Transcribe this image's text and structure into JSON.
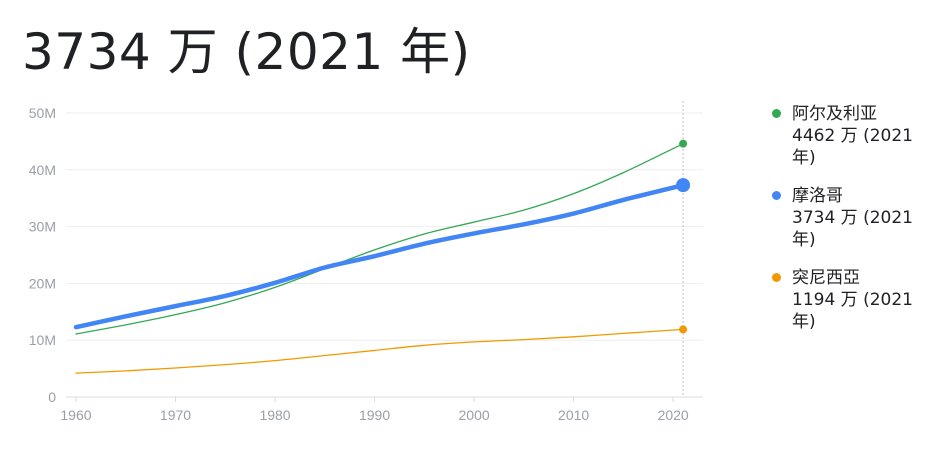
{
  "headline": "3734 万 (2021 年)",
  "chart_data": {
    "type": "line",
    "x": [
      1960,
      1965,
      1970,
      1975,
      1980,
      1985,
      1990,
      1995,
      2000,
      2005,
      2010,
      2015,
      2021
    ],
    "xticks": [
      "1960",
      "1970",
      "1980",
      "1990",
      "2000",
      "2010",
      "2020"
    ],
    "yticks": [
      "0",
      "10M",
      "20M",
      "30M",
      "40M",
      "50M"
    ],
    "xlim": [
      1959,
      2023
    ],
    "ylim": [
      0,
      50
    ],
    "grid": true,
    "legend_position": "right",
    "series": [
      {
        "name": "阿尔及利亚",
        "color": "#34a853",
        "emphasis": false,
        "values": [
          11.1,
          12.7,
          14.5,
          16.6,
          19.3,
          22.6,
          25.9,
          28.7,
          30.8,
          32.9,
          35.8,
          39.5,
          44.6
        ],
        "label": "4462 万 (2021 年)"
      },
      {
        "name": "摩洛哥",
        "color": "#4285f4",
        "emphasis": true,
        "values": [
          12.3,
          14.2,
          16.0,
          17.8,
          20.1,
          22.8,
          24.8,
          27.0,
          28.8,
          30.4,
          32.3,
          34.7,
          37.3
        ],
        "label": "3734 万 (2021 年)"
      },
      {
        "name": "突尼西亞",
        "color": "#f29900",
        "emphasis": false,
        "values": [
          4.2,
          4.6,
          5.1,
          5.7,
          6.4,
          7.3,
          8.2,
          9.1,
          9.7,
          10.1,
          10.6,
          11.2,
          11.9
        ],
        "label": "1194 万 (2021 年)"
      }
    ]
  }
}
